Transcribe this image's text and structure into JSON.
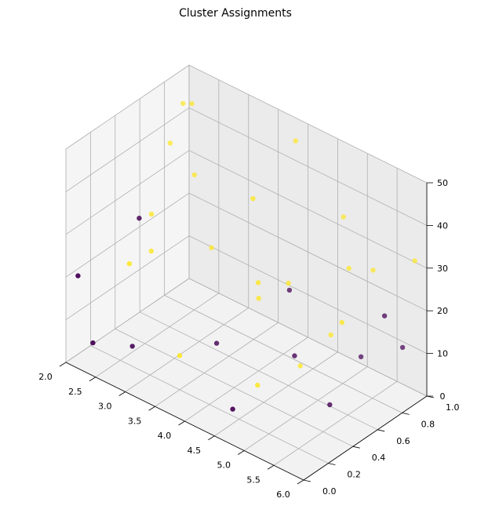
{
  "chart_data": {
    "type": "scatter",
    "title": "Cluster Assignments",
    "xlim": [
      2.0,
      6.0
    ],
    "ylim": [
      0.0,
      1.0
    ],
    "zlim": [
      0,
      50
    ],
    "x_ticks": [
      "2.0",
      "2.5",
      "3.0",
      "3.5",
      "4.0",
      "4.5",
      "5.0",
      "5.5",
      "6.0"
    ],
    "y_ticks": [
      "0.0",
      "0.2",
      "0.4",
      "0.6",
      "0.8",
      "1.0"
    ],
    "z_ticks": [
      "0",
      "10",
      "20",
      "30",
      "40",
      "50"
    ],
    "grid": true,
    "series": [
      {
        "cluster": 0,
        "color": "#440154",
        "points": [
          {
            "x": 2.1,
            "y": 0.05,
            "z": 20
          },
          {
            "x": 2.3,
            "y": 0.45,
            "z": 27
          },
          {
            "x": 2.35,
            "y": 0.05,
            "z": 6
          },
          {
            "x": 2.6,
            "y": 0.25,
            "z": 3
          },
          {
            "x": 3.5,
            "y": 0.5,
            "z": 5
          },
          {
            "x": 4.0,
            "y": 0.85,
            "z": 14
          },
          {
            "x": 4.5,
            "y": 0.65,
            "z": 6
          },
          {
            "x": 5.1,
            "y": 0.9,
            "z": 5
          },
          {
            "x": 5.6,
            "y": 0.85,
            "z": 19
          },
          {
            "x": 4.6,
            "y": 0.1,
            "z": 5
          },
          {
            "x": 5.3,
            "y": 0.55,
            "z": 2
          },
          {
            "x": 5.8,
            "y": 0.9,
            "z": 12
          }
        ]
      },
      {
        "cluster": 1,
        "color": "#fde725",
        "points": [
          {
            "x": 2.0,
            "y": 0.95,
            "z": 42
          },
          {
            "x": 2.15,
            "y": 0.95,
            "z": 43
          },
          {
            "x": 2.2,
            "y": 0.75,
            "z": 38
          },
          {
            "x": 2.4,
            "y": 0.85,
            "z": 30
          },
          {
            "x": 2.3,
            "y": 0.55,
            "z": 26
          },
          {
            "x": 2.4,
            "y": 0.5,
            "z": 19
          },
          {
            "x": 2.55,
            "y": 0.25,
            "z": 22
          },
          {
            "x": 3.0,
            "y": 0.7,
            "z": 20
          },
          {
            "x": 3.8,
            "y": 0.65,
            "z": 38
          },
          {
            "x": 4.0,
            "y": 0.9,
            "z": 48
          },
          {
            "x": 4.0,
            "y": 0.6,
            "z": 17
          },
          {
            "x": 4.2,
            "y": 0.5,
            "z": 24
          },
          {
            "x": 4.7,
            "y": 0.95,
            "z": 34
          },
          {
            "x": 4.5,
            "y": 0.6,
            "z": 24
          },
          {
            "x": 5.0,
            "y": 0.85,
            "z": 26
          },
          {
            "x": 5.2,
            "y": 0.95,
            "z": 25
          },
          {
            "x": 5.4,
            "y": 0.6,
            "z": 21
          },
          {
            "x": 3.5,
            "y": 0.2,
            "z": 8
          },
          {
            "x": 4.7,
            "y": 0.6,
            "z": 6
          },
          {
            "x": 4.8,
            "y": 0.8,
            "z": 10
          },
          {
            "x": 5.9,
            "y": 0.95,
            "z": 32
          },
          {
            "x": 4.5,
            "y": 0.35,
            "z": 5
          }
        ]
      }
    ]
  }
}
